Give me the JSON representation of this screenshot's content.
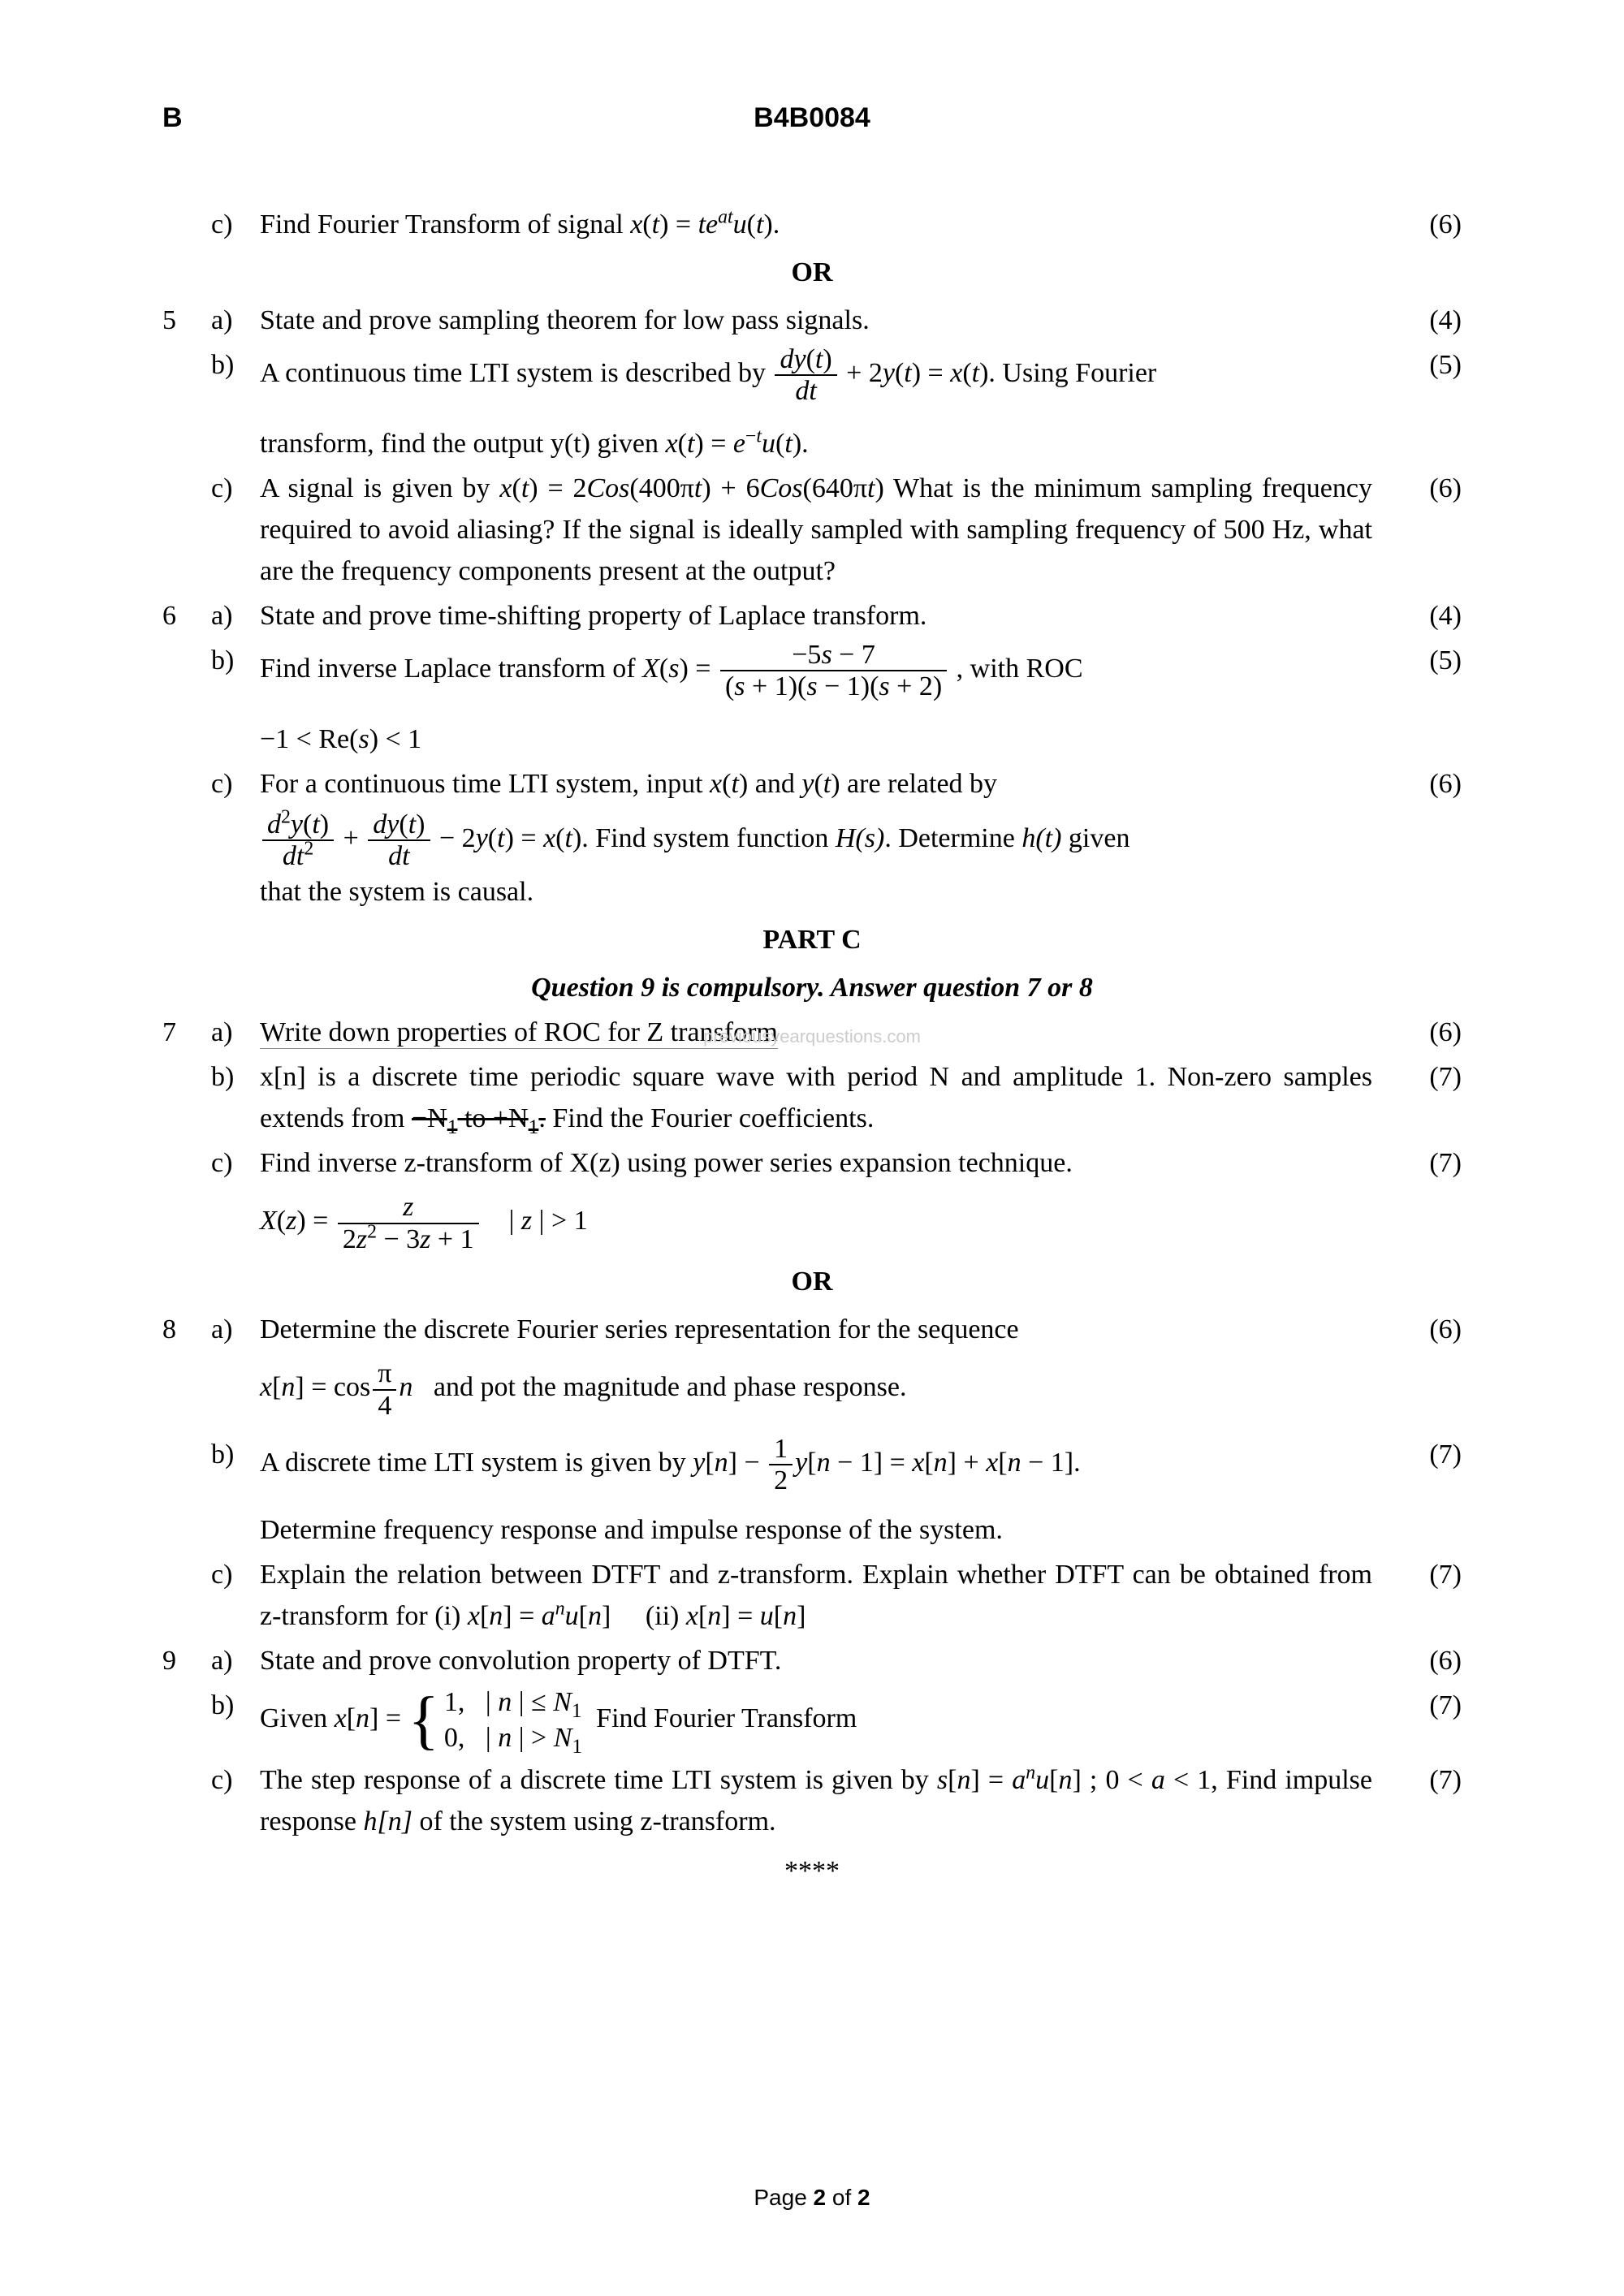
{
  "header": {
    "left": "B",
    "center": "B4B0084"
  },
  "q4c": {
    "text_pre": "Find Fourier Transform of signal   ",
    "formula_html": "<span class='italic'>x</span>(<span class='italic'>t</span>) = <span class='italic'>te</span><sup><span class='italic'>at</span></sup><span class='italic'>u</span>(<span class='italic'>t</span>).",
    "marks": "(6)"
  },
  "or1": "OR",
  "q5a": {
    "text": "State and prove sampling theorem for low pass signals.",
    "marks": "(4)"
  },
  "q5b": {
    "line1_html": "A continuous time LTI system is described by <span class='frac'><span class='num'><span class='italic'>dy</span>(<span class='italic'>t</span>)</span><span class='den'><span class='italic'>dt</span></span></span> + 2<span class='italic'>y</span>(<span class='italic'>t</span>) = <span class='italic'>x</span>(<span class='italic'>t</span>). Using Fourier",
    "line2_html": "transform, find the output y(t) given  <span class='italic'>x</span>(<span class='italic'>t</span>) = <span class='italic'>e</span><sup>−<span class='italic'>t</span></sup><span class='italic'>u</span>(<span class='italic'>t</span>).",
    "marks": "(5)"
  },
  "q5c": {
    "text_html": "A signal is given by  <span class='italic'>x</span>(<span class='italic'>t</span>) = 2<span class='italic'>Cos</span>(400π<span class='italic'>t</span>) + 6<span class='italic'>Cos</span>(640π<span class='italic'>t</span>)  What is the minimum sampling frequency required to avoid aliasing? If the signal is ideally sampled with sampling frequency of 500 Hz, what are the frequency components present at the output?",
    "marks": "(6)"
  },
  "q6a": {
    "text": "State and prove time-shifting property of Laplace transform.",
    "marks": "(4)"
  },
  "q6b": {
    "line1_html": "Find  inverse  Laplace  transform  of   <span class='italic'>X</span>(<span class='italic'>s</span>) = <span class='frac'><span class='num'>−5<span class='italic'>s</span> − 7</span><span class='den'>(<span class='italic'>s</span> + 1)(<span class='italic'>s</span> − 1)(<span class='italic'>s</span> + 2)</span></span> , with  ROC",
    "line2_html": "−1 &lt; Re(<span class='italic'>s</span>) &lt; 1",
    "marks": "(5)"
  },
  "q6c": {
    "line1_html": "For  a  continuous  time  LTI  system,  input   <span class='italic'>x</span>(<span class='italic'>t</span>) and   <span class='italic'>y</span>(<span class='italic'>t</span>) are  related  by",
    "line2_html": "<span class='frac'><span class='num'><span class='italic'>d</span><sup>2</sup><span class='italic'>y</span>(<span class='italic'>t</span>)</span><span class='den'><span class='italic'>dt</span><sup>2</sup></span></span> + <span class='frac'><span class='num'><span class='italic'>dy</span>(<span class='italic'>t</span>)</span><span class='den'><span class='italic'>dt</span></span></span> − 2<span class='italic'>y</span>(<span class='italic'>t</span>) = <span class='italic'>x</span>(<span class='italic'>t</span>).  Find system function  <span class='italic'>H(s)</span>.  Determine  <span class='italic'>h(t)</span>  given",
    "line3": "that the system is causal.",
    "marks": "(6)"
  },
  "partc": "PART C",
  "partc_sub": "Question 9 is compulsory. Answer question 7 or 8",
  "q7a": {
    "text": "Write down properties of ROC for Z transform",
    "marks": "(6)"
  },
  "q7b": {
    "text_html": "x[n] is a discrete time periodic square wave with period N and amplitude 1. Non-zero samples extends from <span style='text-decoration: line-through;'>−N<sub>1</sub> to +N<sub>1</sub>.</span> Find the Fourier coefficients.",
    "marks": "(7)"
  },
  "q7c": {
    "line1": "Find inverse z-transform of X(z) using power series expansion technique.",
    "line2_html": "<span class='italic'>X</span>(<span class='italic'>z</span>) = <span class='frac'><span class='num'><span class='italic'>z</span></span><span class='den'>2<span class='italic'>z</span><sup>2</sup> − 3<span class='italic'>z</span> + 1</span></span>&nbsp;&nbsp;&nbsp; | <span class='italic'>z</span> | &gt; 1",
    "marks": "(7)"
  },
  "or2": "OR",
  "q8a": {
    "line1_html": "Determine   the   discrete   Fourier   series   representation   for   the   sequence",
    "line2_html": "<span class='italic'>x</span>[<span class='italic'>n</span>] = cos<span class='frac'><span class='num'>π</span><span class='den'>4</span></span><span class='italic'>n</span>&nbsp;&nbsp; and pot the magnitude and phase response.",
    "marks": "(6)"
  },
  "q8b": {
    "line1_html": "A  discrete  time  LTI  system  is  given  by   <span class='italic'>y</span>[<span class='italic'>n</span>] − <span class='frac'><span class='num'>1</span><span class='den'>2</span></span><span class='italic'>y</span>[<span class='italic'>n</span> − 1] = <span class='italic'>x</span>[<span class='italic'>n</span>] + <span class='italic'>x</span>[<span class='italic'>n</span> − 1].",
    "line2": "Determine frequency response and impulse response of the system.",
    "marks": "(7)"
  },
  "q8c": {
    "text_html": "Explain the relation between DTFT and z-transform. Explain whether DTFT can be obtained from z-transform for (i)  <span class='italic'>x</span>[<span class='italic'>n</span>] = <span class='italic'>a</span><sup><span class='italic'>n</span></sup><span class='italic'>u</span>[<span class='italic'>n</span>]&nbsp;&nbsp;&nbsp;&nbsp;&nbsp;(ii)  <span class='italic'>x</span>[<span class='italic'>n</span>] = <span class='italic'>u</span>[<span class='italic'>n</span>]",
    "marks": "(7)"
  },
  "q9a": {
    "text": "State and prove convolution property of DTFT.",
    "marks": "(6)"
  },
  "q9b": {
    "text_html": "Given  <span class='italic'>x</span>[<span class='italic'>n</span>] = <span class='case-brace'>{</span><span class='case-content'>1,&nbsp;&nbsp;&nbsp;| <span class='italic'>n</span> | ≤ <span class='italic'>N</span><sub>1</sub><br>0,&nbsp;&nbsp;&nbsp;| <span class='italic'>n</span> | &gt; <span class='italic'>N</span><sub>1</sub></span>&nbsp;&nbsp;Find Fourier Transform",
    "marks": "(7)"
  },
  "q9c": {
    "text_html": "The step response of a discrete time LTI system is given by  <span class='italic'>s</span>[<span class='italic'>n</span>] = <span class='italic'>a</span><sup><span class='italic'>n</span></sup><span class='italic'>u</span>[<span class='italic'>n</span>] ; 0 &lt; <span class='italic'>a</span> &lt; 1, Find impulse response <span class='italic'>h[n]</span> of the system using z-transform.",
    "marks": "(7)"
  },
  "end": "****",
  "footer": {
    "page_label": "Page ",
    "page_num_bold": "2",
    "page_sep": " of ",
    "page_total_bold": "2"
  },
  "watermark": "previousyearquestions.com"
}
